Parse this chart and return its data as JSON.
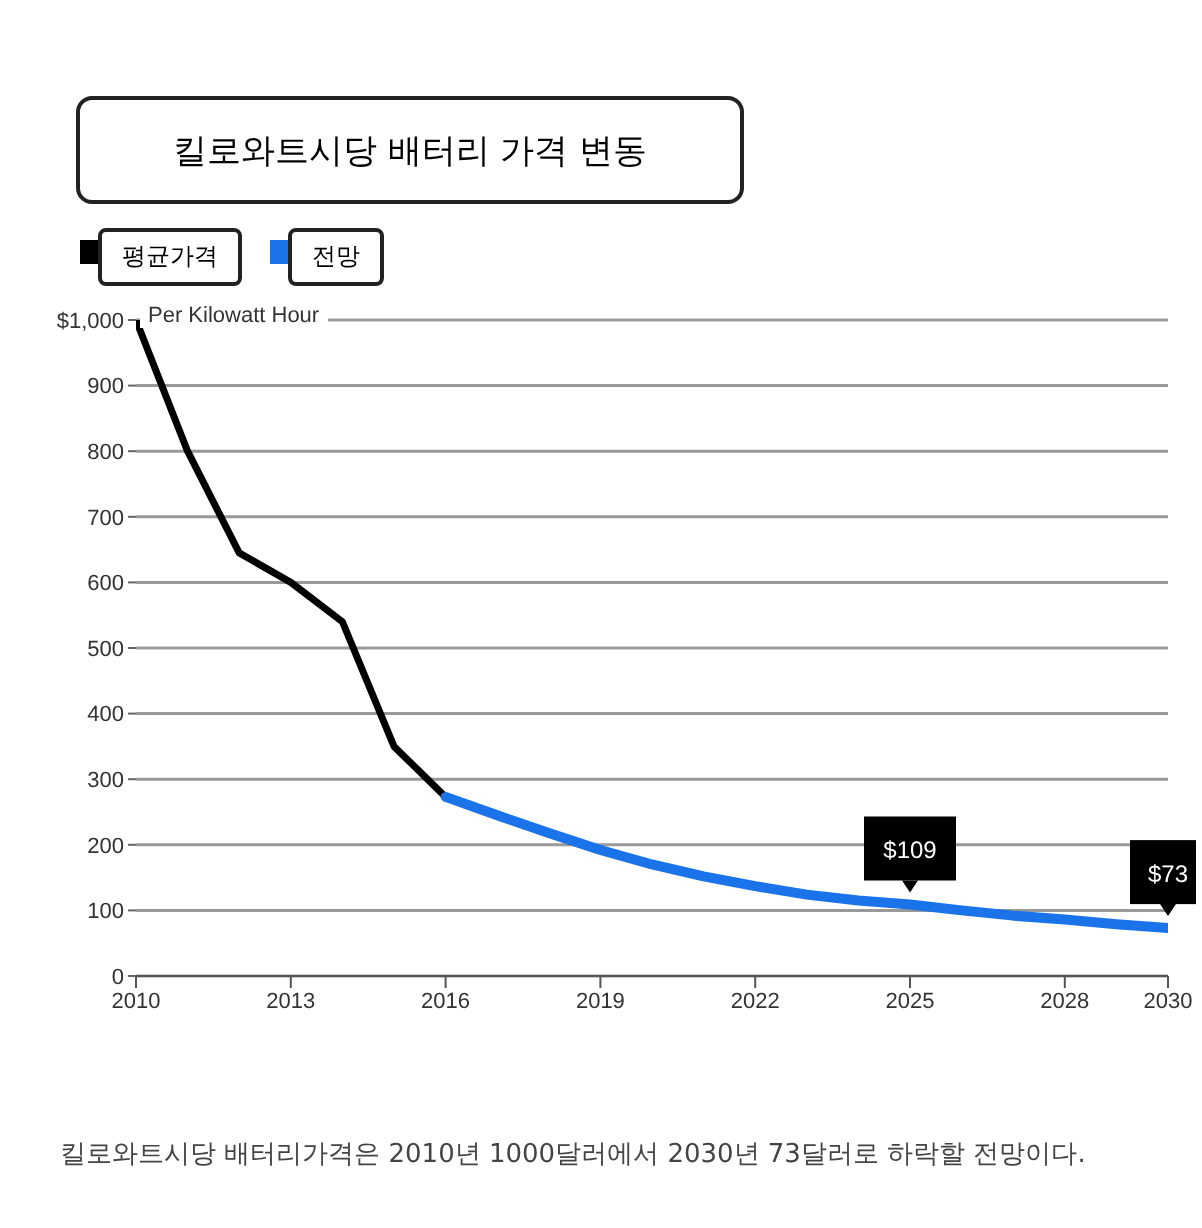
{
  "chart_data": {
    "type": "line",
    "title": "킬로와트시당 배터리 가격 변동",
    "ylabel": "Per Kilowatt Hour",
    "legend": "top left",
    "grid": "y",
    "marker": "none",
    "line_style": "solid",
    "xlim": [
      2010,
      2030
    ],
    "xticks": [
      2010,
      2013,
      2016,
      2019,
      2022,
      2025,
      2028,
      2030
    ],
    "ylim": [
      0,
      1000
    ],
    "yticks": [
      0,
      100,
      200,
      300,
      400,
      500,
      600,
      700,
      800,
      900,
      {
        "value": 1000,
        "label": "$1,000"
      }
    ],
    "series": [
      {
        "name": "평균가격",
        "color": "#000000",
        "x": [
          2010,
          2011,
          2012,
          2013,
          2014,
          2015,
          2016
        ],
        "values": [
          1000,
          800,
          645,
          600,
          540,
          350,
          273
        ]
      },
      {
        "name": "전망",
        "color": "#1a73e8",
        "x": [
          2016,
          2017,
          2018,
          2019,
          2020,
          2021,
          2022,
          2023,
          2024,
          2025,
          2026,
          2027,
          2028,
          2029,
          2030
        ],
        "values": [
          273,
          245,
          218,
          192,
          170,
          152,
          137,
          124,
          115,
          109,
          100,
          92,
          86,
          79,
          73
        ],
        "value_labels": [
          null,
          null,
          null,
          null,
          null,
          null,
          null,
          null,
          null,
          "$109",
          null,
          null,
          null,
          null,
          "$73"
        ]
      }
    ],
    "annotations": [
      "킬로와트시당 배터리가격은 2010년 1000달러에서 2030년 73달러로 하락할 전망이다."
    ]
  }
}
